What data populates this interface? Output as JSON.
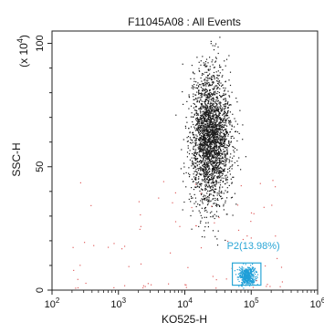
{
  "chart_data": {
    "type": "scatter",
    "title": "F11045A08 : All Events",
    "xlabel": "KO525-H",
    "ylabel": "SSC-H",
    "y_multiplier_label": "(x 10^4)",
    "x_scale": "log",
    "xlim": [
      100,
      1000000
    ],
    "ylim": [
      0,
      105
    ],
    "x_tick_labels": [
      {
        "base": "10",
        "exp": "2",
        "value": 100
      },
      {
        "base": "10",
        "exp": "3",
        "value": 1000
      },
      {
        "base": "10",
        "exp": "4",
        "value": 10000
      },
      {
        "base": "10",
        "exp": "5",
        "value": 100000
      },
      {
        "base": "10",
        "exp": "6",
        "value": 1000000
      }
    ],
    "y_tick_labels": [
      {
        "label": "0",
        "value": 0
      },
      {
        "label": "50",
        "value": 50
      },
      {
        "label": "100",
        "value": 100
      }
    ],
    "grid": false,
    "colors": {
      "main_population": "#1a1a1a",
      "p2_population": "#1f9fd8",
      "scattered_events": "#e06060",
      "gate": "#2aa6d6"
    },
    "gate": {
      "name": "P2",
      "label": "P2(13.98%)",
      "x_range": [
        52000,
        140000
      ],
      "y_range": [
        2,
        11
      ]
    },
    "populations": [
      {
        "key": "main",
        "color": "#1a1a1a",
        "x_log_center": 4.38,
        "x_log_spread": 0.15,
        "y_center": 62,
        "y_spread": 13,
        "approx_count": 2600
      },
      {
        "key": "p2",
        "color": "#1f9fd8",
        "x_log_center": 4.93,
        "x_log_spread": 0.06,
        "y_center": 6,
        "y_spread": 1.8,
        "approx_count": 420
      },
      {
        "key": "scatter",
        "color": "#e06060",
        "x_log_range": [
          2.3,
          5.5
        ],
        "y_range": [
          1,
          45
        ],
        "approx_count": 80
      }
    ]
  }
}
